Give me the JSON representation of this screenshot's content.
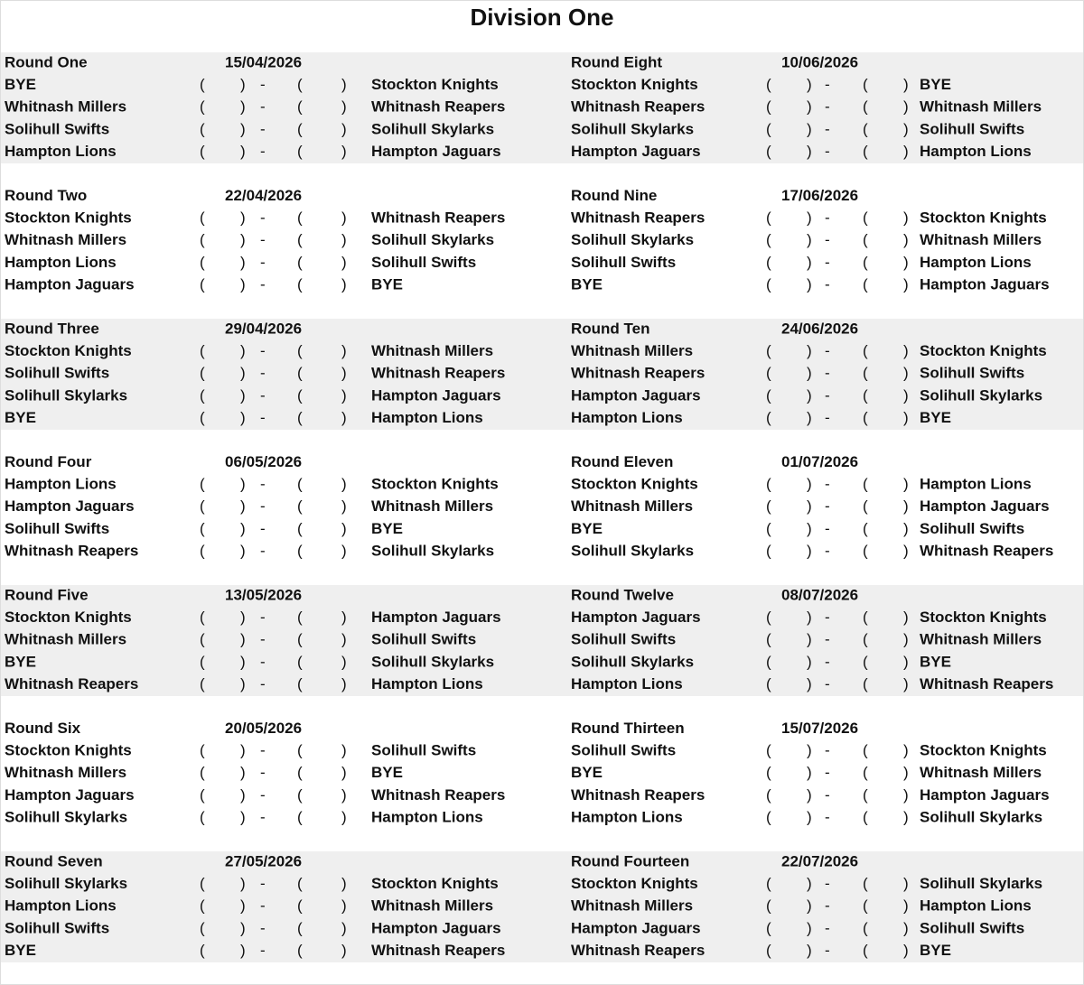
{
  "title": "Division One",
  "score": {
    "open": "(",
    "separator": "-",
    "close": ")"
  },
  "teams": [
    {
      "name": "Stockton Knights",
      "color": "#c00000"
    },
    {
      "name": "Whitnash Millers",
      "color": "#f2b705"
    },
    {
      "name": "Whitnash Reapers",
      "color": "#f2b705"
    },
    {
      "name": "Solihull Swifts",
      "color": "#0070c0"
    },
    {
      "name": "Solihull Skylarks",
      "color": "#0070c0"
    },
    {
      "name": "Hampton Lions",
      "color": "#111111"
    },
    {
      "name": "Hampton Jaguars",
      "color": "#111111"
    }
  ],
  "rounds": [
    {
      "name": "Round One",
      "date": "15/04/2026",
      "fixtures": [
        [
          "BYE",
          "Stockton Knights"
        ],
        [
          "Whitnash Millers",
          "Whitnash Reapers"
        ],
        [
          "Solihull Swifts",
          "Solihull Skylarks"
        ],
        [
          "Hampton Lions",
          "Hampton Jaguars"
        ]
      ]
    },
    {
      "name": "Round Two",
      "date": "22/04/2026",
      "fixtures": [
        [
          "Stockton Knights",
          "Whitnash Reapers"
        ],
        [
          "Whitnash Millers",
          "Solihull Skylarks"
        ],
        [
          "Hampton Lions",
          "Solihull Swifts"
        ],
        [
          "Hampton Jaguars",
          "BYE"
        ]
      ]
    },
    {
      "name": "Round Three",
      "date": "29/04/2026",
      "fixtures": [
        [
          "Stockton Knights",
          "Whitnash Millers"
        ],
        [
          "Solihull Swifts",
          "Whitnash Reapers"
        ],
        [
          "Solihull Skylarks",
          "Hampton Jaguars"
        ],
        [
          "BYE",
          "Hampton Lions"
        ]
      ]
    },
    {
      "name": "Round Four",
      "date": "06/05/2026",
      "fixtures": [
        [
          "Hampton Lions",
          "Stockton Knights"
        ],
        [
          "Hampton Jaguars",
          "Whitnash Millers"
        ],
        [
          "Solihull Swifts",
          "BYE"
        ],
        [
          "Whitnash Reapers",
          "Solihull Skylarks"
        ]
      ]
    },
    {
      "name": "Round Five",
      "date": "13/05/2026",
      "fixtures": [
        [
          "Stockton Knights",
          "Hampton Jaguars"
        ],
        [
          "Whitnash Millers",
          "Solihull Swifts"
        ],
        [
          "BYE",
          "Solihull Skylarks"
        ],
        [
          "Whitnash Reapers",
          "Hampton Lions"
        ]
      ]
    },
    {
      "name": "Round Six",
      "date": "20/05/2026",
      "fixtures": [
        [
          "Stockton Knights",
          "Solihull Swifts"
        ],
        [
          "Whitnash Millers",
          "BYE"
        ],
        [
          "Hampton Jaguars",
          "Whitnash Reapers"
        ],
        [
          "Solihull Skylarks",
          "Hampton Lions"
        ]
      ]
    },
    {
      "name": "Round Seven",
      "date": "27/05/2026",
      "fixtures": [
        [
          "Solihull Skylarks",
          "Stockton Knights"
        ],
        [
          "Hampton Lions",
          "Whitnash Millers"
        ],
        [
          "Solihull Swifts",
          "Hampton Jaguars"
        ],
        [
          "BYE",
          "Whitnash Reapers"
        ]
      ]
    },
    {
      "name": "Round Eight",
      "date": "10/06/2026",
      "fixtures": [
        [
          "Stockton Knights",
          "BYE"
        ],
        [
          "Whitnash Reapers",
          "Whitnash Millers"
        ],
        [
          "Solihull Skylarks",
          "Solihull Swifts"
        ],
        [
          "Hampton Jaguars",
          "Hampton Lions"
        ]
      ]
    },
    {
      "name": "Round Nine",
      "date": "17/06/2026",
      "fixtures": [
        [
          "Whitnash Reapers",
          "Stockton Knights"
        ],
        [
          "Solihull Skylarks",
          "Whitnash Millers"
        ],
        [
          "Solihull Swifts",
          "Hampton Lions"
        ],
        [
          "BYE",
          "Hampton Jaguars"
        ]
      ]
    },
    {
      "name": "Round Ten",
      "date": "24/06/2026",
      "fixtures": [
        [
          "Whitnash Millers",
          "Stockton Knights"
        ],
        [
          "Whitnash Reapers",
          "Solihull Swifts"
        ],
        [
          "Hampton Jaguars",
          "Solihull Skylarks"
        ],
        [
          "Hampton Lions",
          "BYE"
        ]
      ]
    },
    {
      "name": "Round Eleven",
      "date": "01/07/2026",
      "fixtures": [
        [
          "Stockton Knights",
          "Hampton Lions"
        ],
        [
          "Whitnash Millers",
          "Hampton Jaguars"
        ],
        [
          "BYE",
          "Solihull Swifts"
        ],
        [
          "Solihull Skylarks",
          "Whitnash Reapers"
        ]
      ]
    },
    {
      "name": "Round Twelve",
      "date": "08/07/2026",
      "fixtures": [
        [
          "Hampton Jaguars",
          "Stockton Knights"
        ],
        [
          "Solihull Swifts",
          "Whitnash Millers"
        ],
        [
          "Solihull Skylarks",
          "BYE"
        ],
        [
          "Hampton Lions",
          "Whitnash Reapers"
        ]
      ]
    },
    {
      "name": "Round Thirteen",
      "date": "15/07/2026",
      "fixtures": [
        [
          "Solihull Swifts",
          "Stockton Knights"
        ],
        [
          "BYE",
          "Whitnash Millers"
        ],
        [
          "Whitnash Reapers",
          "Hampton Jaguars"
        ],
        [
          "Hampton Lions",
          "Solihull Skylarks"
        ]
      ]
    },
    {
      "name": "Round Fourteen",
      "date": "22/07/2026",
      "fixtures": [
        [
          "Stockton Knights",
          "Solihull Skylarks"
        ],
        [
          "Whitnash Millers",
          "Hampton Lions"
        ],
        [
          "Hampton Jaguars",
          "Solihull Swifts"
        ],
        [
          "Whitnash Reapers",
          "BYE"
        ]
      ]
    }
  ]
}
